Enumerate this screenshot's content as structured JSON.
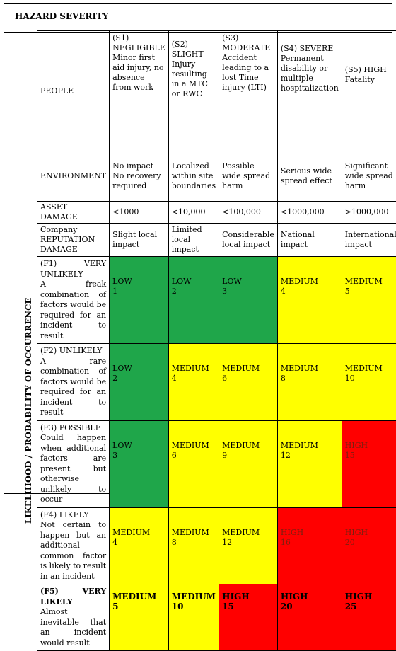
{
  "title": "HAZARD SEVERITY",
  "side_label": "LIKELIHOOD / PROBABILITY OF OCCURRENCE",
  "consequence_rows": [
    {
      "label": "PEOPLE",
      "cells": [
        "(S1) NEGLIGIBLE Minor first aid injury, no absence from work",
        "(S2) SLIGHT Injury resulting in a MTC or RWC",
        "(S3) MODERATE Accident leading to a lost Time injury (LTI)",
        "(S4) SEVERE Permanent disability or multiple hospitalization",
        "(S5) HIGH Fatality"
      ]
    },
    {
      "label": "ENVIRONMENT",
      "cells": [
        "No impact No recovery required",
        "Localized within site boundaries",
        "Possible wide spread harm",
        "Serious wide spread effect",
        "Significant wide spread harm"
      ]
    },
    {
      "label": "ASSET DAMAGE",
      "cells": [
        "<1000",
        "<10,000",
        "<100,000",
        "<1000,000",
        ">1000,000"
      ]
    },
    {
      "label": "Company REPUTATION DAMAGE",
      "cells": [
        "Slight local impact",
        "Limited local impact",
        "Considerable local impact",
        "National impact",
        "International impact"
      ]
    }
  ],
  "likelihood_rows": [
    {
      "head": "(F1) VERY UNLIKELY",
      "desc": "A freak combination of factors would be required for an incident to result",
      "cells": [
        {
          "level": "LOW",
          "score": "1",
          "color": "green"
        },
        {
          "level": "LOW",
          "score": "2",
          "color": "green"
        },
        {
          "level": "LOW",
          "score": "3",
          "color": "green"
        },
        {
          "level": "MEDIUM",
          "score": "4",
          "color": "yellow"
        },
        {
          "level": "MEDIUM",
          "score": "5",
          "color": "yellow"
        }
      ]
    },
    {
      "head": "(F2) UNLIKELY",
      "desc": "A rare combination of factors would be required for an incident to result",
      "cells": [
        {
          "level": "LOW",
          "score": "2",
          "color": "green"
        },
        {
          "level": "MEDIUM",
          "score": "4",
          "color": "yellow"
        },
        {
          "level": "MEDIUM",
          "score": "6",
          "color": "yellow"
        },
        {
          "level": "MEDIUM",
          "score": "8",
          "color": "yellow"
        },
        {
          "level": "MEDIUM",
          "score": "10",
          "color": "yellow"
        }
      ]
    },
    {
      "head": "(F3) POSSIBLE",
      "desc": "Could happen when additional factors are present but otherwise unlikely to occur",
      "cells": [
        {
          "level": "LOW",
          "score": "3",
          "color": "green"
        },
        {
          "level": "MEDIUM",
          "score": "6",
          "color": "yellow"
        },
        {
          "level": "MEDIUM",
          "score": "9",
          "color": "yellow"
        },
        {
          "level": "MEDIUM",
          "score": "12",
          "color": "yellow"
        },
        {
          "level": "HIGH",
          "score": "15",
          "color": "red"
        }
      ]
    },
    {
      "head": "(F4) LIKELY",
      "desc": "Not certain to happen but an additional common factor is likely to result in an incident",
      "cells": [
        {
          "level": "MEDIUM",
          "score": "4",
          "color": "yellow"
        },
        {
          "level": "MEDIUM",
          "score": "8",
          "color": "yellow"
        },
        {
          "level": "MEDIUM",
          "score": "12",
          "color": "yellow"
        },
        {
          "level": "HIGH",
          "score": "16",
          "color": "red"
        },
        {
          "level": "HIGH",
          "score": "20",
          "color": "red"
        }
      ]
    },
    {
      "head": "(F5) VERY LIKELY",
      "desc": "Almost inevitable that an incident would result",
      "cells": [
        {
          "level": "MEDIUM",
          "score": "5",
          "color": "yellow"
        },
        {
          "level": "MEDIUM",
          "score": "10",
          "color": "yellow"
        },
        {
          "level": "HIGH",
          "score": "15",
          "color": "red"
        },
        {
          "level": "HIGH",
          "score": "20",
          "color": "red"
        },
        {
          "level": "HIGH",
          "score": "25",
          "color": "red"
        }
      ]
    }
  ],
  "colors": {
    "green": "#1fa64a",
    "yellow": "#ffff00",
    "red": "#ff0000"
  }
}
